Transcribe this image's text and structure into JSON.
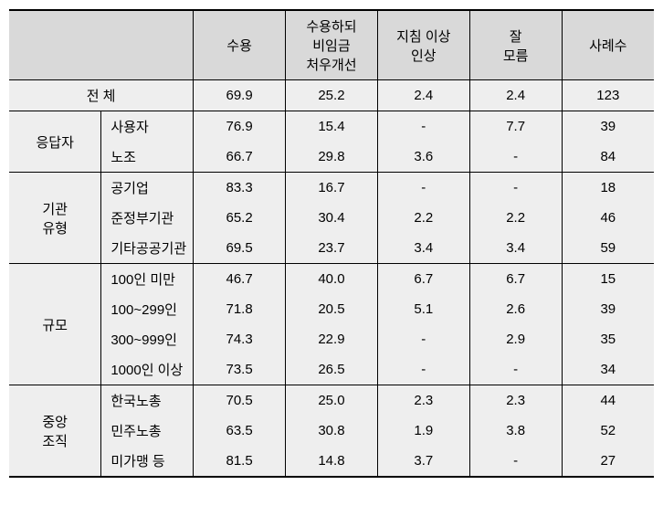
{
  "headers": {
    "c1": "수용",
    "c2": "수용하되\n비임금\n처우개선",
    "c3": "지침 이상\n인상",
    "c4": "잘\n모름",
    "c5": "사례수"
  },
  "total": {
    "label": "전 체",
    "v": [
      "69.9",
      "25.2",
      "2.4",
      "2.4",
      "123"
    ]
  },
  "sections": [
    {
      "label": "응답자",
      "rows": [
        {
          "label": "사용자",
          "v": [
            "76.9",
            "15.4",
            "-",
            "7.7",
            "39"
          ]
        },
        {
          "label": "노조",
          "v": [
            "66.7",
            "29.8",
            "3.6",
            "-",
            "84"
          ]
        }
      ]
    },
    {
      "label": "기관\n유형",
      "rows": [
        {
          "label": "공기업",
          "v": [
            "83.3",
            "16.7",
            "-",
            "-",
            "18"
          ]
        },
        {
          "label": "준정부기관",
          "v": [
            "65.2",
            "30.4",
            "2.2",
            "2.2",
            "46"
          ]
        },
        {
          "label": "기타공공기관",
          "v": [
            "69.5",
            "23.7",
            "3.4",
            "3.4",
            "59"
          ]
        }
      ]
    },
    {
      "label": "규모",
      "rows": [
        {
          "label": "100인 미만",
          "v": [
            "46.7",
            "40.0",
            "6.7",
            "6.7",
            "15"
          ]
        },
        {
          "label": "100~299인",
          "v": [
            "71.8",
            "20.5",
            "5.1",
            "2.6",
            "39"
          ]
        },
        {
          "label": "300~999인",
          "v": [
            "74.3",
            "22.9",
            "-",
            "2.9",
            "35"
          ]
        },
        {
          "label": "1000인 이상",
          "v": [
            "73.5",
            "26.5",
            "-",
            "-",
            "34"
          ]
        }
      ]
    },
    {
      "label": "중앙\n조직",
      "rows": [
        {
          "label": "한국노총",
          "v": [
            "70.5",
            "25.0",
            "2.3",
            "2.3",
            "44"
          ]
        },
        {
          "label": "민주노총",
          "v": [
            "63.5",
            "30.8",
            "1.9",
            "3.8",
            "52"
          ]
        },
        {
          "label": "미가맹 등",
          "v": [
            "81.5",
            "14.8",
            "3.7",
            "-",
            "27"
          ]
        }
      ]
    }
  ]
}
